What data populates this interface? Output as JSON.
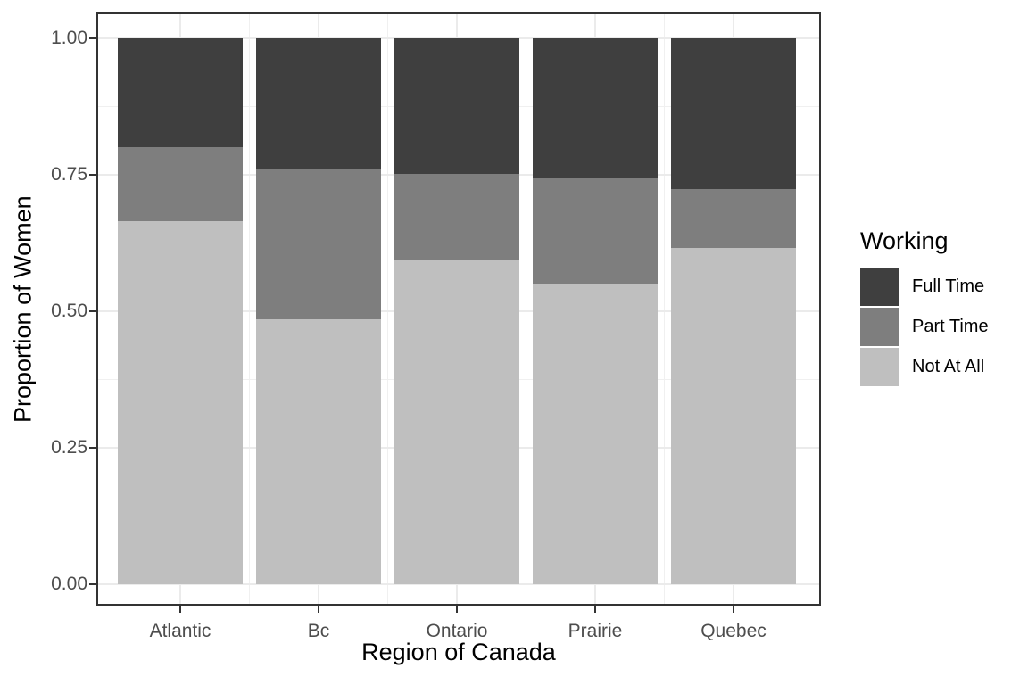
{
  "chart_data": {
    "type": "bar",
    "stacked": true,
    "title": "",
    "xlabel": "Region of Canada",
    "ylabel": "Proportion of Women",
    "categories": [
      "Atlantic",
      "Bc",
      "Ontario",
      "Prairie",
      "Quebec"
    ],
    "series": [
      {
        "name": "Not At All",
        "color": "#BFBFBF",
        "values": [
          0.665,
          0.485,
          0.593,
          0.551,
          0.616
        ]
      },
      {
        "name": "Part Time",
        "color": "#7E7E7E",
        "values": [
          0.135,
          0.275,
          0.159,
          0.192,
          0.108
        ]
      },
      {
        "name": "Full Time",
        "color": "#3F3F3F",
        "values": [
          0.2,
          0.24,
          0.248,
          0.257,
          0.276
        ]
      }
    ],
    "ylim": [
      0,
      1
    ],
    "y_ticks": {
      "values": [
        0,
        0.25,
        0.5,
        0.75,
        1
      ],
      "labels": [
        "0.00",
        "0.25",
        "0.50",
        "0.75",
        "1.00"
      ]
    },
    "y_minor": [
      0.125,
      0.375,
      0.625,
      0.875
    ],
    "grid": {
      "major_color": "#EBEBEB",
      "minor_color": "#F0F0F0"
    },
    "axis": {
      "tick_color": "#333333",
      "tick_label_color": "#4D4D4D",
      "border_color": "#333333"
    },
    "legend": {
      "title": "Working",
      "position": "right",
      "items": [
        {
          "label": "Full Time",
          "color": "#3F3F3F"
        },
        {
          "label": "Part Time",
          "color": "#7E7E7E"
        },
        {
          "label": "Not At All",
          "color": "#BFBFBF"
        }
      ]
    }
  }
}
